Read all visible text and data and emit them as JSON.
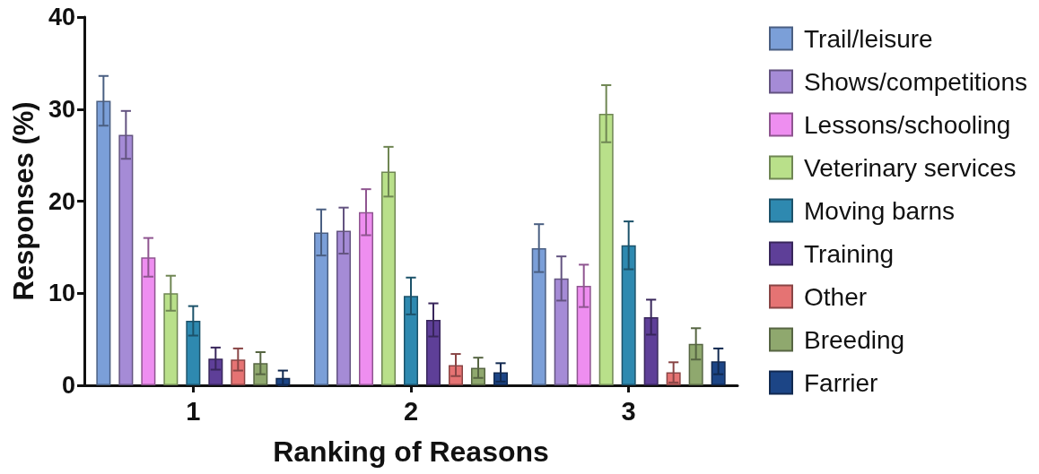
{
  "chart_data": {
    "type": "bar",
    "xlabel": "Ranking of Reasons",
    "ylabel": "Responses (%)",
    "categories": [
      "1",
      "2",
      "3"
    ],
    "series": [
      {
        "name": "Trail/leisure",
        "color": "#7b9fd8",
        "values": [
          30.9,
          16.6,
          14.9
        ],
        "errors": [
          2.7,
          2.5,
          2.6
        ]
      },
      {
        "name": "Shows/competitions",
        "color": "#a58bd6",
        "values": [
          27.2,
          16.8,
          11.6
        ],
        "errors": [
          2.6,
          2.5,
          2.4
        ]
      },
      {
        "name": "Lessons/schooling",
        "color": "#ee8ef0",
        "values": [
          13.9,
          18.8,
          10.8
        ],
        "errors": [
          2.1,
          2.5,
          2.3
        ]
      },
      {
        "name": "Veterinary services",
        "color": "#b9e08a",
        "values": [
          10.0,
          23.2,
          29.5
        ],
        "errors": [
          1.9,
          2.7,
          3.1
        ]
      },
      {
        "name": "Moving barns",
        "color": "#2e89b0",
        "values": [
          7.0,
          9.7,
          15.2
        ],
        "errors": [
          1.6,
          2.0,
          2.6
        ]
      },
      {
        "name": "Training",
        "color": "#5e3f98",
        "values": [
          2.9,
          7.1,
          7.4
        ],
        "errors": [
          1.2,
          1.8,
          1.9
        ]
      },
      {
        "name": "Other",
        "color": "#e57373",
        "values": [
          2.8,
          2.2,
          1.4
        ],
        "errors": [
          1.2,
          1.2,
          1.1
        ]
      },
      {
        "name": "Breeding",
        "color": "#8fa86e",
        "values": [
          2.4,
          1.9,
          4.5
        ],
        "errors": [
          1.2,
          1.1,
          1.7
        ]
      },
      {
        "name": "Farrier",
        "color": "#1c4586",
        "values": [
          0.8,
          1.4,
          2.6
        ],
        "errors": [
          0.8,
          1.0,
          1.4
        ]
      }
    ],
    "ylim": [
      0,
      40
    ],
    "yticks": [
      0,
      10,
      20,
      30,
      40
    ],
    "grid": false,
    "legend": "right"
  }
}
